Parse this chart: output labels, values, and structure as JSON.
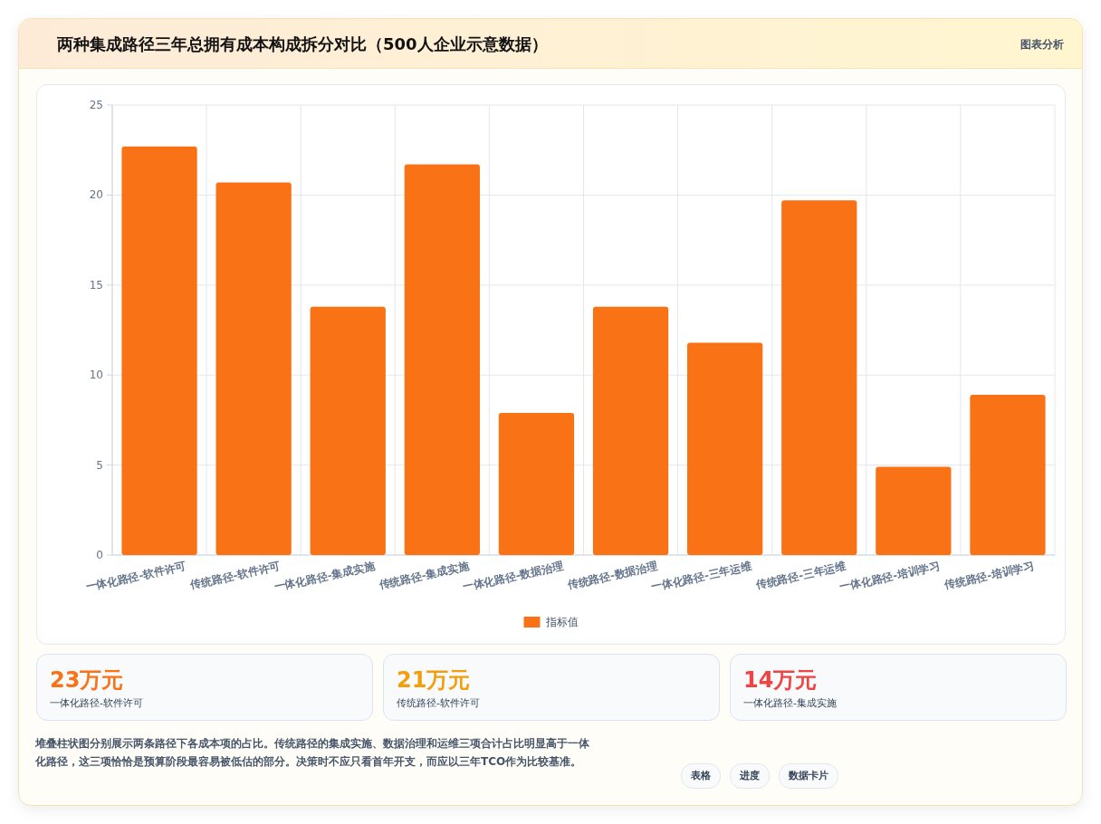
{
  "chart_data": [
    {
      "type": "bar",
      "title": "两种集成路径三年总拥有成本构成拆分对比（500人企业示意数据）",
      "categories": [
        "一体化路径-软件许可",
        "传统路径-软件许可",
        "一体化路径-集成实施",
        "传统路径-集成实施",
        "一体化路径-数据治理",
        "传统路径-数据治理",
        "一体化路径-三年运维",
        "传统路径-三年运维",
        "一体化路径-培训学习",
        "传统路径-培训学习"
      ],
      "series": [
        {
          "name": "指标值",
          "color": "#f97316",
          "values": [
            22.7,
            20.7,
            13.8,
            21.7,
            7.9,
            13.8,
            11.8,
            19.7,
            4.9,
            8.9
          ]
        }
      ],
      "ylim": [
        0,
        25
      ],
      "yticks": [
        0,
        5,
        10,
        15,
        20,
        25
      ],
      "grid": true,
      "legend": "bottom",
      "annotations": [
        "图表分析",
        "堆叠柱状图分别展示两条路径下各成本项的占比。传统路径的集成实施、数据治理和运维三项合计占比明显高于一体化路径，这三项恰恰是预算阶段最容易被低估的部分。决策时不应只看首年开支，而应以三年TCO作为比较基准。",
        "表格",
        "进度",
        "数据卡片"
      ]
    },
    {
      "type": "other",
      "annotations": [
        "23万元",
        "一体化路径-软件许可",
        "21万元",
        "传统路径-软件许可",
        "14万元",
        "一体化路径-集成实施"
      ]
    }
  ]
}
